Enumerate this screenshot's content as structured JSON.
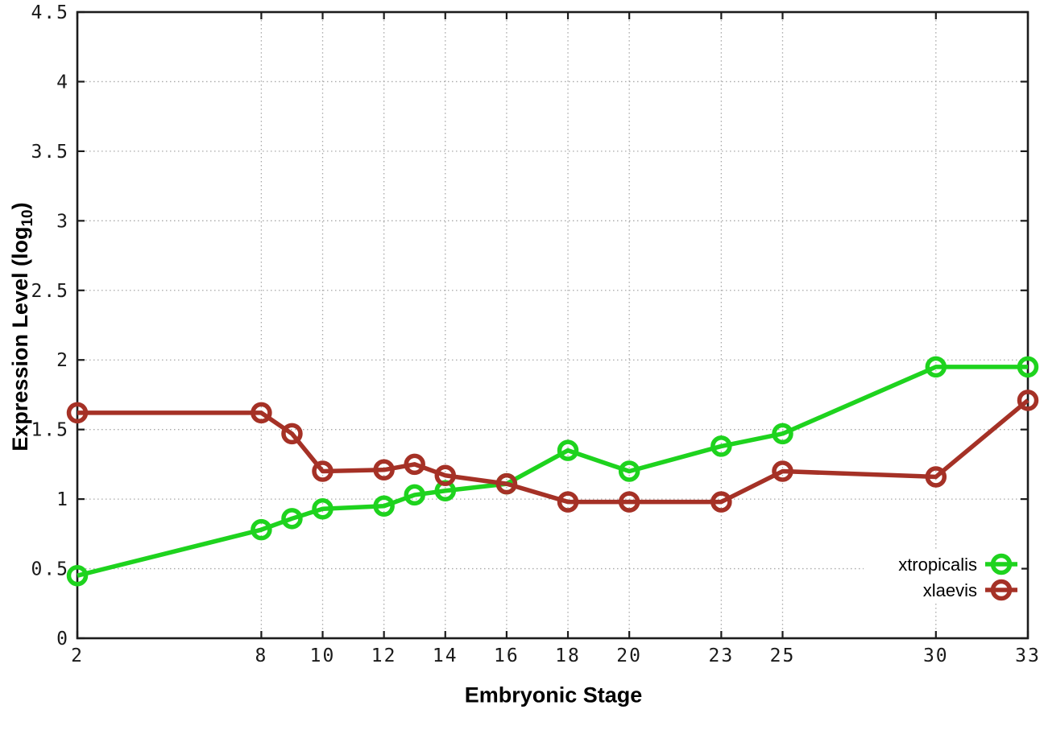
{
  "chart_data": {
    "type": "line",
    "title": "",
    "xlabel": "Embryonic Stage",
    "ylabel": "Expression Level (log10)",
    "ylabel_parts": {
      "main": "Expression Level (log",
      "sub": "10",
      "end": ")"
    },
    "x": [
      2,
      8,
      9,
      10,
      12,
      13,
      14,
      16,
      18,
      20,
      23,
      25,
      30,
      33
    ],
    "xticks": [
      2,
      8,
      10,
      12,
      14,
      16,
      18,
      20,
      23,
      25,
      30,
      33
    ],
    "xtick_labels": [
      "2",
      "8",
      "10",
      "12",
      "14",
      "16",
      "18",
      "20",
      "23",
      "25",
      "30",
      "33"
    ],
    "yticks": [
      0,
      0.5,
      1,
      1.5,
      2,
      2.5,
      3,
      3.5,
      4,
      4.5
    ],
    "ytick_labels": [
      "0",
      "0.5",
      "1",
      "1.5",
      "2",
      "2.5",
      "3",
      "3.5",
      "4",
      "4.5"
    ],
    "xlim": [
      2,
      33
    ],
    "ylim": [
      0,
      4.5
    ],
    "grid": true,
    "legend_position": "bottom-right",
    "series": [
      {
        "name": "xtropicalis",
        "color": "#1ed31e",
        "values": [
          0.45,
          0.78,
          0.86,
          0.93,
          0.95,
          1.03,
          1.06,
          1.11,
          1.35,
          1.2,
          1.38,
          1.47,
          1.95,
          1.95
        ]
      },
      {
        "name": "xlaevis",
        "color": "#a53126",
        "values": [
          1.62,
          1.62,
          1.47,
          1.2,
          1.21,
          1.25,
          1.17,
          1.11,
          0.98,
          0.98,
          0.98,
          1.2,
          1.16,
          1.71
        ]
      }
    ]
  }
}
